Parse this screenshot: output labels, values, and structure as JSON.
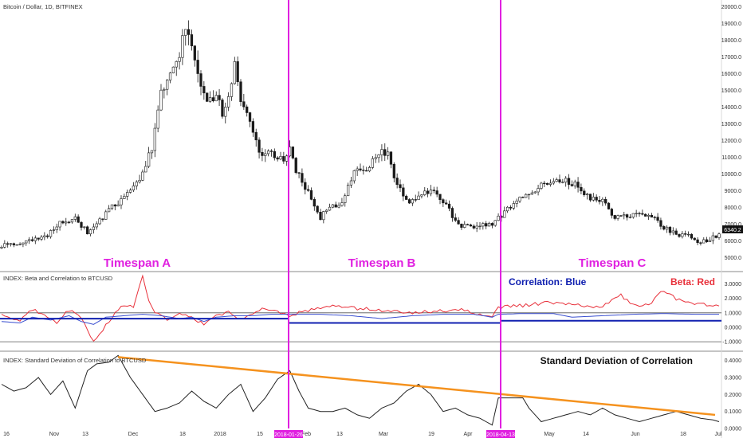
{
  "colors": {
    "up": "#ffffff",
    "down": "#1a1a1a",
    "divider": "#e020e0",
    "beta": "#e8303a",
    "correlation": "#3a4fd0",
    "baseline": "#1020b0",
    "std": "#222222",
    "trend": "#f5921e",
    "ref": "#555555",
    "label_bg": "#e020e0"
  },
  "main_title": "Bitcoin / Dollar, 1D, BITFINEX",
  "price_badge": "6340.2",
  "timespans": [
    "Timespan A",
    "Timespan B",
    "Timespan C"
  ],
  "divider_dates": [
    "2018-01-26",
    "2018-04-13"
  ],
  "pane2": {
    "title": "INDEX: Beta and Correlation to BTCUSD",
    "legend_corr": "Correlation: Blue",
    "legend_beta": "Beta: Red",
    "ylim": [
      -1.6,
      3.8
    ],
    "ticks": [
      "3.0000",
      "2.0000",
      "1.0000",
      "0.0000",
      "-1.0000"
    ],
    "tick_values": [
      3,
      2,
      1,
      0,
      -1
    ],
    "ref_lines": [
      1,
      -1
    ],
    "baselines": [
      0.6,
      0.3,
      0.45
    ]
  },
  "pane3": {
    "title": "INDEX: Standard Deviation of Correlation to BTCUSD",
    "annotation": "Standard Deviation of Correlation",
    "ylim": [
      0.0,
      0.45
    ],
    "ticks": [
      "0.4000",
      "0.3000",
      "0.2000",
      "0.1000",
      "0.0000"
    ],
    "tick_values": [
      0.4,
      0.3,
      0.2,
      0.1,
      0.0
    ],
    "trend_line": [
      [
        0,
        0.42
      ],
      [
        1,
        0.08
      ]
    ]
  },
  "x_axis_labels": [
    "16",
    "Nov",
    "13",
    "Dec",
    "18",
    "2018",
    "15",
    "Feb",
    "13",
    "Mar",
    "19",
    "Apr",
    "May",
    "14",
    "Jun",
    "18",
    "Jul"
  ],
  "chart_data": [
    {
      "type": "candlestick",
      "title": "Bitcoin / Dollar, 1D, BITFINEX",
      "y_ticks": [
        "20000.0",
        "19000.0",
        "18000.0",
        "17000.0",
        "16000.0",
        "15000.0",
        "14000.0",
        "13000.0",
        "12000.0",
        "11000.0",
        "10000.0",
        "9000.0",
        "8000.0",
        "7000.0",
        "6000.0",
        "5000.0"
      ],
      "ylim": [
        4300,
        20300
      ],
      "keypoints": [
        [
          0,
          5700
        ],
        [
          6,
          5900
        ],
        [
          10,
          6000
        ],
        [
          14,
          6200
        ],
        [
          20,
          7200
        ],
        [
          24,
          7300
        ],
        [
          28,
          6500
        ],
        [
          32,
          7200
        ],
        [
          36,
          8000
        ],
        [
          40,
          8500
        ],
        [
          45,
          9700
        ],
        [
          49,
          11500
        ],
        [
          52,
          14800
        ],
        [
          56,
          16500
        ],
        [
          58,
          17200
        ],
        [
          60,
          19000
        ],
        [
          62,
          18000
        ],
        [
          64,
          16000
        ],
        [
          67,
          14200
        ],
        [
          70,
          14800
        ],
        [
          72,
          13500
        ],
        [
          74,
          14500
        ],
        [
          76,
          16500
        ],
        [
          78,
          14500
        ],
        [
          80,
          13500
        ],
        [
          84,
          11300
        ],
        [
          88,
          11300
        ],
        [
          92,
          10700
        ],
        [
          94,
          11500
        ],
        [
          96,
          10200
        ],
        [
          100,
          8900
        ],
        [
          104,
          7400
        ],
        [
          107,
          8000
        ],
        [
          111,
          8300
        ],
        [
          115,
          10100
        ],
        [
          119,
          10300
        ],
        [
          123,
          11300
        ],
        [
          126,
          11200
        ],
        [
          129,
          9300
        ],
        [
          133,
          8300
        ],
        [
          137,
          8800
        ],
        [
          141,
          8900
        ],
        [
          145,
          8100
        ],
        [
          149,
          6900
        ],
        [
          153,
          6800
        ],
        [
          157,
          6900
        ],
        [
          160,
          7000
        ],
        [
          164,
          7700
        ],
        [
          168,
          8300
        ],
        [
          172,
          8900
        ],
        [
          176,
          9300
        ],
        [
          180,
          9500
        ],
        [
          184,
          9600
        ],
        [
          188,
          9300
        ],
        [
          192,
          8500
        ],
        [
          196,
          8400
        ],
        [
          200,
          7400
        ],
        [
          204,
          7500
        ],
        [
          208,
          7700
        ],
        [
          212,
          7500
        ],
        [
          216,
          6800
        ],
        [
          220,
          6400
        ],
        [
          224,
          6300
        ],
        [
          228,
          5900
        ],
        [
          231,
          6100
        ],
        [
          234,
          6340
        ]
      ],
      "candle_count": 235
    },
    {
      "type": "line",
      "title": "INDEX: Beta and Correlation to BTCUSD",
      "series": [
        {
          "name": "Beta",
          "keypoints": [
            [
              0,
              0.9
            ],
            [
              6,
              0.5
            ],
            [
              10,
              1.2
            ],
            [
              14,
              0.9
            ],
            [
              18,
              0.3
            ],
            [
              22,
              1.2
            ],
            [
              26,
              0.6
            ],
            [
              28,
              -0.2
            ],
            [
              30,
              -0.9
            ],
            [
              32,
              -0.4
            ],
            [
              36,
              0.7
            ],
            [
              40,
              1.6
            ],
            [
              43,
              1.3
            ],
            [
              46,
              3.5
            ],
            [
              48,
              1.9
            ],
            [
              50,
              1.0
            ],
            [
              54,
              0.5
            ],
            [
              58,
              1.0
            ],
            [
              62,
              0.6
            ],
            [
              66,
              0.2
            ],
            [
              70,
              0.9
            ],
            [
              74,
              1.0
            ],
            [
              78,
              0.5
            ],
            [
              82,
              1.0
            ],
            [
              86,
              1.3
            ],
            [
              90,
              1.1
            ],
            [
              94,
              0.8
            ],
            [
              100,
              1.2
            ],
            [
              108,
              1.5
            ],
            [
              116,
              1.3
            ],
            [
              124,
              1.2
            ],
            [
              132,
              1.0
            ],
            [
              140,
              1.1
            ],
            [
              150,
              1.2
            ],
            [
              160,
              0.7
            ],
            [
              162,
              1.4
            ],
            [
              170,
              1.5
            ],
            [
              178,
              1.7
            ],
            [
              186,
              1.6
            ],
            [
              196,
              1.4
            ],
            [
              202,
              2.2
            ],
            [
              206,
              1.5
            ],
            [
              212,
              1.7
            ],
            [
              216,
              2.6
            ],
            [
              220,
              2.0
            ],
            [
              226,
              1.6
            ],
            [
              234,
              1.5
            ]
          ]
        },
        {
          "name": "Correlation",
          "keypoints": [
            [
              0,
              0.4
            ],
            [
              6,
              0.3
            ],
            [
              10,
              0.7
            ],
            [
              16,
              0.5
            ],
            [
              22,
              0.8
            ],
            [
              26,
              0.4
            ],
            [
              30,
              0.2
            ],
            [
              34,
              0.7
            ],
            [
              40,
              0.8
            ],
            [
              46,
              0.9
            ],
            [
              52,
              0.8
            ],
            [
              58,
              0.6
            ],
            [
              62,
              0.7
            ],
            [
              66,
              0.4
            ],
            [
              70,
              0.7
            ],
            [
              76,
              0.8
            ],
            [
              82,
              0.8
            ],
            [
              88,
              0.9
            ],
            [
              94,
              0.9
            ],
            [
              104,
              0.9
            ],
            [
              114,
              0.8
            ],
            [
              124,
              0.6
            ],
            [
              134,
              0.8
            ],
            [
              144,
              0.9
            ],
            [
              154,
              0.9
            ],
            [
              160,
              0.7
            ],
            [
              162,
              0.9
            ],
            [
              170,
              0.95
            ],
            [
              180,
              0.95
            ],
            [
              186,
              0.7
            ],
            [
              196,
              0.8
            ],
            [
              206,
              0.9
            ],
            [
              216,
              0.95
            ],
            [
              226,
              0.9
            ],
            [
              234,
              0.9
            ]
          ]
        }
      ]
    },
    {
      "type": "line",
      "title": "INDEX: Standard Deviation of Correlation to BTCUSD",
      "series": [
        {
          "name": "Standard Deviation of Correlation",
          "keypoints": [
            [
              0,
              0.26
            ],
            [
              4,
              0.22
            ],
            [
              8,
              0.24
            ],
            [
              12,
              0.3
            ],
            [
              16,
              0.2
            ],
            [
              20,
              0.28
            ],
            [
              24,
              0.12
            ],
            [
              28,
              0.34
            ],
            [
              31,
              0.38
            ],
            [
              35,
              0.39
            ],
            [
              38,
              0.43
            ],
            [
              42,
              0.3
            ],
            [
              46,
              0.2
            ],
            [
              50,
              0.1
            ],
            [
              54,
              0.12
            ],
            [
              58,
              0.15
            ],
            [
              62,
              0.22
            ],
            [
              66,
              0.16
            ],
            [
              70,
              0.12
            ],
            [
              74,
              0.2
            ],
            [
              78,
              0.26
            ],
            [
              82,
              0.1
            ],
            [
              86,
              0.18
            ],
            [
              90,
              0.29
            ],
            [
              94,
              0.34
            ],
            [
              97,
              0.22
            ],
            [
              100,
              0.12
            ],
            [
              104,
              0.1
            ],
            [
              108,
              0.1
            ],
            [
              112,
              0.12
            ],
            [
              116,
              0.08
            ],
            [
              120,
              0.06
            ],
            [
              124,
              0.12
            ],
            [
              128,
              0.15
            ],
            [
              132,
              0.22
            ],
            [
              136,
              0.26
            ],
            [
              140,
              0.2
            ],
            [
              144,
              0.1
            ],
            [
              148,
              0.12
            ],
            [
              152,
              0.08
            ],
            [
              156,
              0.06
            ],
            [
              160,
              0.02
            ],
            [
              162,
              0.18
            ],
            [
              166,
              0.18
            ],
            [
              170,
              0.18
            ],
            [
              172,
              0.12
            ],
            [
              176,
              0.04
            ],
            [
              180,
              0.06
            ],
            [
              184,
              0.08
            ],
            [
              188,
              0.1
            ],
            [
              192,
              0.08
            ],
            [
              196,
              0.12
            ],
            [
              200,
              0.08
            ],
            [
              204,
              0.06
            ],
            [
              208,
              0.04
            ],
            [
              212,
              0.06
            ],
            [
              216,
              0.08
            ],
            [
              220,
              0.1
            ],
            [
              224,
              0.08
            ],
            [
              228,
              0.06
            ],
            [
              232,
              0.05
            ],
            [
              234,
              0.04
            ]
          ]
        }
      ]
    }
  ]
}
